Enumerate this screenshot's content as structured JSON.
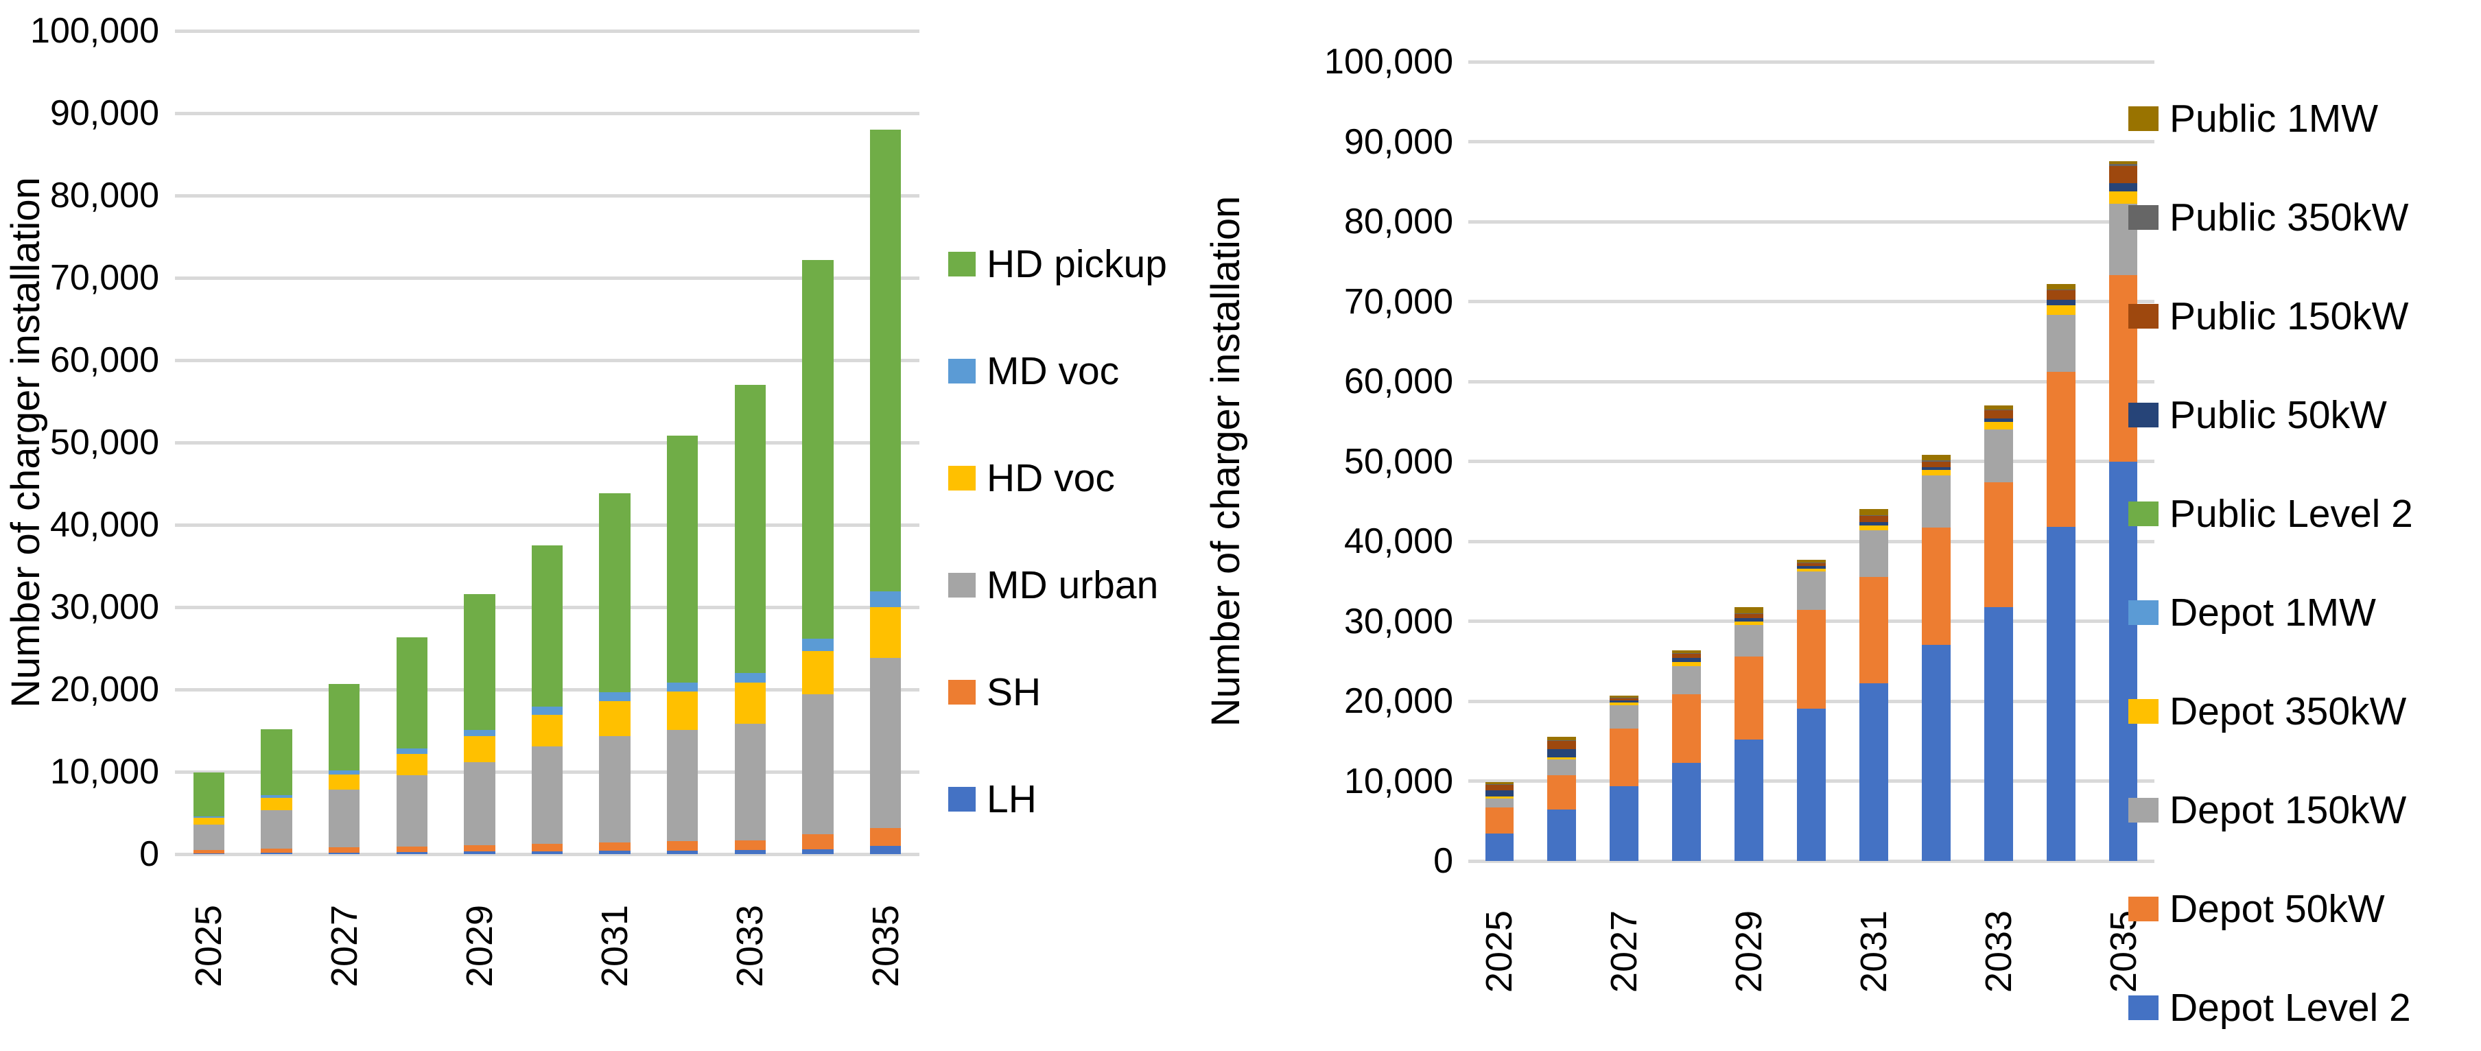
{
  "figure": {
    "background": "#FFFFFF",
    "text_color": "#000000"
  },
  "chart_data": [
    {
      "type": "bar",
      "stacked": true,
      "title": "",
      "xlabel": "",
      "ylabel": "Number of charger installation",
      "ylim": [
        0,
        100000
      ],
      "ytick_interval": 10000,
      "ytick_labels_top_to_bottom": [
        "100,000",
        "90,000",
        "80,000",
        "70,000",
        "60,000",
        "50,000",
        "40,000",
        "30,000",
        "20,000",
        "10,000",
        "0"
      ],
      "grid": "horizontal",
      "gridline_color": "#D9D9D9",
      "categories": [
        "2025",
        "2026",
        "2027",
        "2028",
        "2029",
        "2030",
        "2031",
        "2032",
        "2033",
        "2034",
        "2035"
      ],
      "xtick_labels_visible": [
        "2025",
        "2027",
        "2029",
        "2031",
        "2033",
        "2035"
      ],
      "legend_position": "right",
      "legend_order_top_to_bottom": [
        "HD pickup",
        "MD voc",
        "HD voc",
        "MD urban",
        "SH",
        "LH"
      ],
      "series_bottom_to_top": [
        {
          "name": "LH",
          "color": "#4472C4",
          "values": [
            100,
            150,
            200,
            250,
            300,
            350,
            400,
            450,
            500,
            600,
            1000
          ]
        },
        {
          "name": "SH",
          "color": "#ED7D31",
          "values": [
            400,
            500,
            600,
            700,
            800,
            900,
            1000,
            1100,
            1200,
            1800,
            2200
          ]
        },
        {
          "name": "MD urban",
          "color": "#A5A5A5",
          "values": [
            3100,
            4700,
            7000,
            8600,
            10100,
            11800,
            12900,
            13500,
            14100,
            17000,
            20600
          ]
        },
        {
          "name": "HD voc",
          "color": "#FFC000",
          "values": [
            800,
            1500,
            1900,
            2600,
            3100,
            3900,
            4300,
            4700,
            5000,
            5300,
            6200
          ]
        },
        {
          "name": "MD voc",
          "color": "#5B9BD5",
          "values": [
            200,
            350,
            500,
            650,
            800,
            1000,
            1100,
            1100,
            1200,
            1500,
            1900
          ]
        },
        {
          "name": "HD pickup",
          "color": "#70AD47",
          "values": [
            5300,
            8000,
            10500,
            13500,
            16500,
            19550,
            24100,
            29950,
            35000,
            46000,
            56100
          ]
        }
      ]
    },
    {
      "type": "bar",
      "stacked": true,
      "title": "",
      "xlabel": "",
      "ylabel": "Number of charger installation",
      "ylim": [
        0,
        100000
      ],
      "ytick_interval": 10000,
      "ytick_labels_top_to_bottom": [
        "100,000",
        "90,000",
        "80,000",
        "70,000",
        "60,000",
        "50,000",
        "40,000",
        "30,000",
        "20,000",
        "10,000",
        "0"
      ],
      "grid": "horizontal",
      "gridline_color": "#D9D9D9",
      "categories": [
        "2025",
        "2026",
        "2027",
        "2028",
        "2029",
        "2030",
        "2031",
        "2032",
        "2033",
        "2034",
        "2035"
      ],
      "xtick_labels_visible": [
        "2025",
        "2027",
        "2029",
        "2031",
        "2033",
        "2035"
      ],
      "legend_position": "right",
      "legend_order_top_to_bottom": [
        "Public 1MW",
        "Public 350kW",
        "Public 150kW",
        "Public 50kW",
        "Public Level 2",
        "Depot 1MW",
        "Depot 350kW",
        "Depot 150kW",
        "Depot 50kW",
        "Depot Level 2"
      ],
      "series_bottom_to_top": [
        {
          "name": "Depot Level 2",
          "color": "#4472C4",
          "values": [
            3400,
            6400,
            9400,
            12300,
            15200,
            19100,
            22200,
            27000,
            31800,
            41800,
            50000
          ]
        },
        {
          "name": "Depot 50kW",
          "color": "#ED7D31",
          "values": [
            3300,
            4300,
            7200,
            8600,
            10400,
            12300,
            13300,
            14700,
            15600,
            19400,
            23300
          ]
        },
        {
          "name": "Depot 150kW",
          "color": "#A5A5A5",
          "values": [
            1100,
            2000,
            2900,
            3500,
            3900,
            4800,
            5900,
            6500,
            6600,
            7100,
            8900
          ]
        },
        {
          "name": "Depot 350kW",
          "color": "#FFC000",
          "values": [
            250,
            300,
            300,
            500,
            500,
            400,
            600,
            700,
            900,
            1200,
            1600
          ]
        },
        {
          "name": "Depot 1MW",
          "color": "#5B9BD5",
          "values": [
            0,
            0,
            0,
            0,
            0,
            0,
            0,
            0,
            0,
            0,
            0
          ]
        },
        {
          "name": "Public Level 2",
          "color": "#70AD47",
          "values": [
            0,
            0,
            0,
            0,
            0,
            0,
            0,
            0,
            0,
            0,
            0
          ]
        },
        {
          "name": "Public 50kW",
          "color": "#264478",
          "values": [
            800,
            1000,
            300,
            500,
            400,
            300,
            400,
            400,
            500,
            700,
            1000
          ]
        },
        {
          "name": "Public 150kW",
          "color": "#9E480E",
          "values": [
            700,
            1000,
            250,
            500,
            500,
            350,
            800,
            700,
            1000,
            1200,
            2200
          ]
        },
        {
          "name": "Public 350kW",
          "color": "#666666",
          "values": [
            100,
            100,
            50,
            100,
            100,
            100,
            100,
            100,
            100,
            100,
            200
          ]
        },
        {
          "name": "Public 1MW",
          "color": "#997300",
          "values": [
            250,
            400,
            250,
            400,
            800,
            350,
            700,
            700,
            500,
            700,
            400
          ]
        }
      ]
    }
  ]
}
